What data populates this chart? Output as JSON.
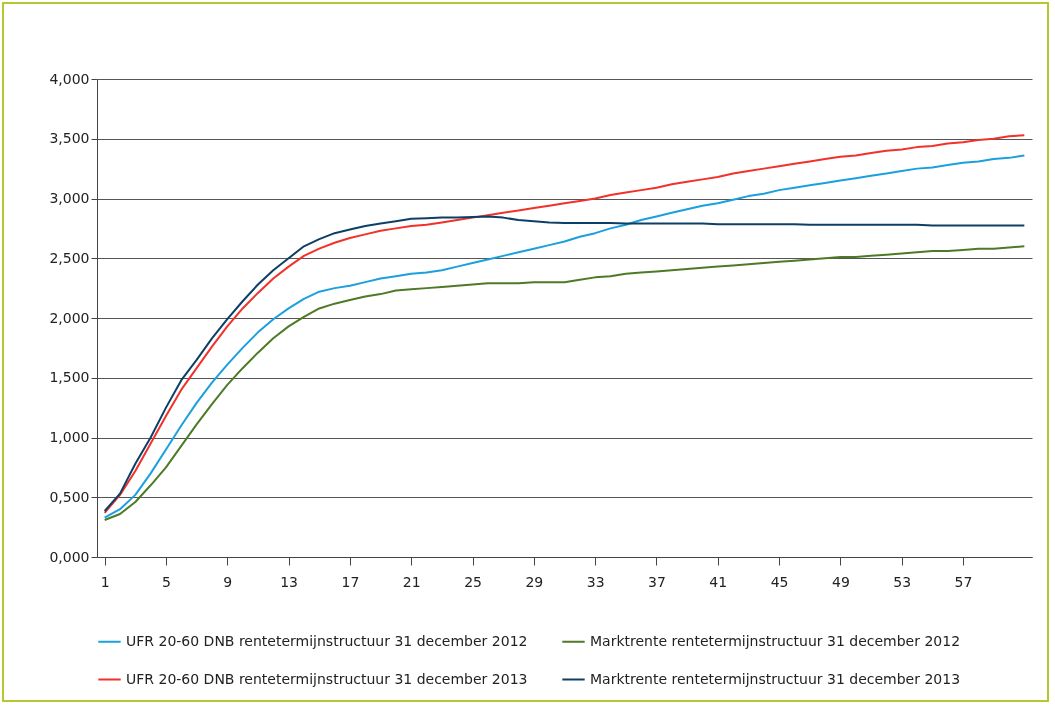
{
  "chart_data": {
    "type": "line",
    "x": [
      1,
      2,
      3,
      4,
      5,
      6,
      7,
      8,
      9,
      10,
      11,
      12,
      13,
      14,
      15,
      16,
      17,
      18,
      19,
      20,
      21,
      22,
      23,
      24,
      25,
      26,
      27,
      28,
      29,
      30,
      31,
      32,
      33,
      34,
      35,
      36,
      37,
      38,
      39,
      40,
      41,
      42,
      43,
      44,
      45,
      46,
      47,
      48,
      49,
      50,
      51,
      52,
      53,
      54,
      55,
      56,
      57,
      58,
      59,
      60,
      61
    ],
    "xlim": [
      0.5,
      61.5
    ],
    "xticks": [
      1,
      5,
      9,
      13,
      17,
      21,
      25,
      29,
      33,
      37,
      41,
      45,
      49,
      53,
      57
    ],
    "ylim": [
      0,
      4
    ],
    "yticks": [
      {
        "value": 0,
        "label": "0,000"
      },
      {
        "value": 0.5,
        "label": "0,500"
      },
      {
        "value": 1,
        "label": "1,000"
      },
      {
        "value": 1.5,
        "label": "1,500"
      },
      {
        "value": 2,
        "label": "2,000"
      },
      {
        "value": 2.5,
        "label": "2,500"
      },
      {
        "value": 3,
        "label": "3,000"
      },
      {
        "value": 3.5,
        "label": "3,500"
      },
      {
        "value": 4,
        "label": "4,000"
      }
    ],
    "grid": "y",
    "legend": "bottom",
    "line_style": "solid",
    "series": [
      {
        "name": "UFR 20-60 DNB rentetermijnstructuur 31 december 2012",
        "color": "#1aa0dc",
        "values": [
          0.33,
          0.4,
          0.52,
          0.7,
          0.9,
          1.1,
          1.29,
          1.46,
          1.61,
          1.75,
          1.88,
          1.99,
          2.08,
          2.16,
          2.22,
          2.25,
          2.27,
          2.3,
          2.33,
          2.35,
          2.37,
          2.38,
          2.4,
          2.43,
          2.46,
          2.49,
          2.52,
          2.55,
          2.58,
          2.61,
          2.64,
          2.68,
          2.71,
          2.75,
          2.78,
          2.82,
          2.85,
          2.88,
          2.91,
          2.94,
          2.96,
          2.99,
          3.02,
          3.04,
          3.07,
          3.09,
          3.11,
          3.13,
          3.15,
          3.17,
          3.19,
          3.21,
          3.23,
          3.25,
          3.26,
          3.28,
          3.3,
          3.31,
          3.33,
          3.34,
          3.36
        ]
      },
      {
        "name": "Marktrente rentetermijnstructuur 31 december 2012",
        "color": "#4e7a27",
        "values": [
          0.31,
          0.36,
          0.46,
          0.6,
          0.75,
          0.93,
          1.11,
          1.28,
          1.44,
          1.58,
          1.71,
          1.83,
          1.93,
          2.01,
          2.08,
          2.12,
          2.15,
          2.18,
          2.2,
          2.23,
          2.24,
          2.25,
          2.26,
          2.27,
          2.28,
          2.29,
          2.29,
          2.29,
          2.3,
          2.3,
          2.3,
          2.32,
          2.34,
          2.35,
          2.37,
          2.38,
          2.39,
          2.4,
          2.41,
          2.42,
          2.43,
          2.44,
          2.45,
          2.46,
          2.47,
          2.48,
          2.49,
          2.5,
          2.51,
          2.51,
          2.52,
          2.53,
          2.54,
          2.55,
          2.56,
          2.56,
          2.57,
          2.58,
          2.58,
          2.59,
          2.6
        ]
      },
      {
        "name": "UFR 20-60 DNB rentetermijnstructuur 31 december 2013",
        "color": "#f0322a",
        "values": [
          0.37,
          0.52,
          0.72,
          0.95,
          1.18,
          1.4,
          1.58,
          1.76,
          1.93,
          2.08,
          2.21,
          2.33,
          2.43,
          2.52,
          2.58,
          2.63,
          2.67,
          2.7,
          2.73,
          2.75,
          2.77,
          2.78,
          2.8,
          2.82,
          2.84,
          2.86,
          2.88,
          2.9,
          2.92,
          2.94,
          2.96,
          2.98,
          3.0,
          3.03,
          3.05,
          3.07,
          3.09,
          3.12,
          3.14,
          3.16,
          3.18,
          3.21,
          3.23,
          3.25,
          3.27,
          3.29,
          3.31,
          3.33,
          3.35,
          3.36,
          3.38,
          3.4,
          3.41,
          3.43,
          3.44,
          3.46,
          3.47,
          3.49,
          3.5,
          3.52,
          3.53
        ]
      },
      {
        "name": "Marktrente rentetermijnstructuur 31 december 2013",
        "color": "#0d3f66",
        "values": [
          0.385,
          0.53,
          0.78,
          1.0,
          1.25,
          1.48,
          1.65,
          1.83,
          1.99,
          2.14,
          2.28,
          2.4,
          2.5,
          2.6,
          2.66,
          2.71,
          2.74,
          2.77,
          2.79,
          2.81,
          2.83,
          2.835,
          2.84,
          2.84,
          2.845,
          2.85,
          2.84,
          2.82,
          2.81,
          2.8,
          2.795,
          2.795,
          2.795,
          2.795,
          2.79,
          2.79,
          2.79,
          2.79,
          2.79,
          2.79,
          2.785,
          2.785,
          2.785,
          2.785,
          2.785,
          2.785,
          2.78,
          2.78,
          2.78,
          2.78,
          2.78,
          2.78,
          2.78,
          2.78,
          2.775,
          2.775,
          2.775,
          2.775,
          2.775,
          2.775,
          2.775
        ]
      }
    ]
  }
}
